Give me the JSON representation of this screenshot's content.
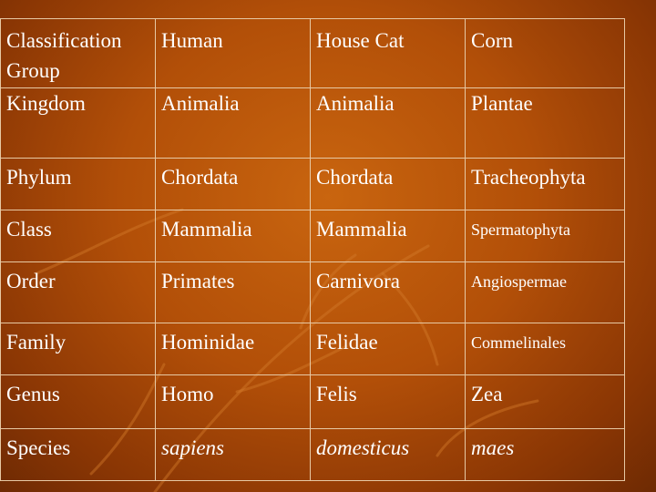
{
  "table": {
    "header": [
      "Classification Group",
      "Human",
      "House Cat",
      "Corn"
    ],
    "rows": [
      [
        "Kingdom",
        "Animalia",
        "Animalia",
        "Plantae"
      ],
      [
        "Phylum",
        "Chordata",
        "Chordata",
        "Tracheophyta"
      ],
      [
        "Class",
        "Mammalia",
        "Mammalia",
        "Spermatophyta"
      ],
      [
        "Order",
        "Primates",
        "Carnivora",
        "Angiospermae"
      ],
      [
        "Family",
        "Hominidae",
        "Felidae",
        "Commelinales"
      ],
      [
        "Genus",
        "Homo",
        "Felis",
        "Zea"
      ],
      [
        "Species",
        "sapiens",
        "domesticus",
        "maes"
      ]
    ]
  },
  "colors": {
    "background": "#b24f08",
    "text": "#ffffff",
    "grid": "#e7c9a4"
  }
}
